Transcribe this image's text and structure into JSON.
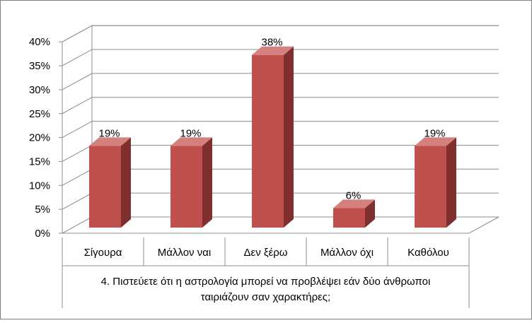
{
  "chart_data": {
    "type": "bar",
    "categories": [
      "Σίγουρα",
      "Μάλλον ναι",
      "Δεν ξέρω",
      "Μάλλον όχι",
      "Καθόλου"
    ],
    "values": [
      19,
      19,
      38,
      6,
      19
    ],
    "data_labels": [
      "19%",
      "19%",
      "38%",
      "6%",
      "19%"
    ],
    "category_group_label": "4. Πιστεύετε ότι η αστρολογία μπορεί να προβλέψει εάν δύο άνθρωποι ταιριάζουν σαν χαρακτήρες;",
    "yticks": [
      "0%",
      "5%",
      "10%",
      "15%",
      "20%",
      "25%",
      "30%",
      "35%",
      "40%"
    ],
    "ylim": [
      0,
      40
    ],
    "grid": true,
    "legend": "none",
    "three_d": true,
    "colors": {
      "bar_front": "#c0504d",
      "bar_side": "#7f302e",
      "bar_top": "#d3807e",
      "grid": "#8c8c8c",
      "text": "#000000"
    }
  }
}
